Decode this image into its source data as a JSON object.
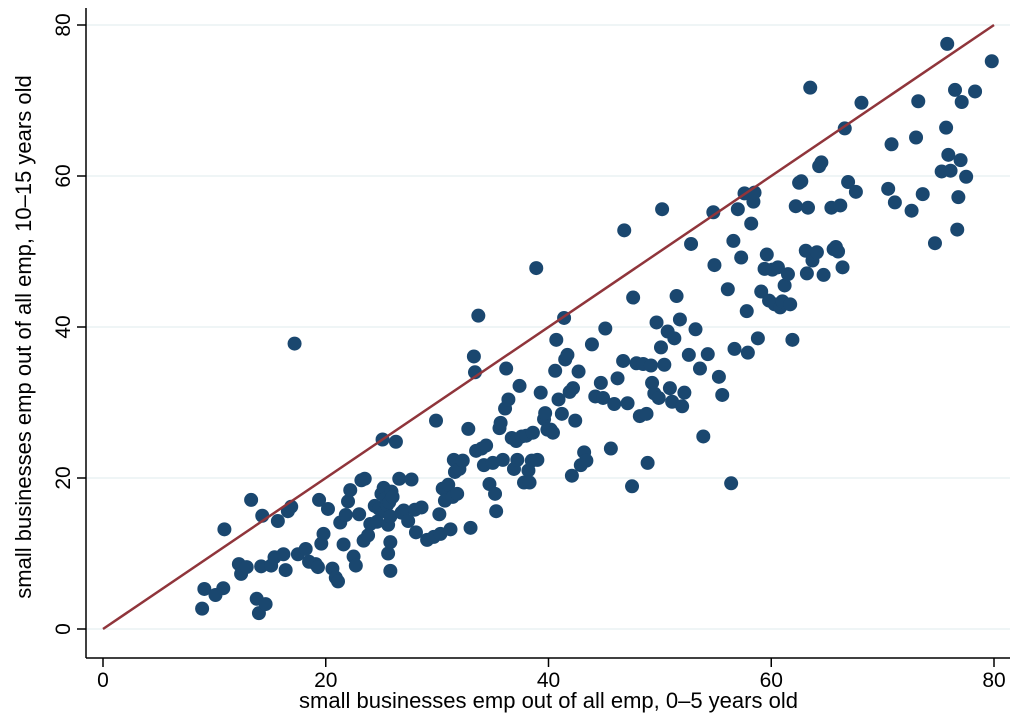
{
  "chart_data": {
    "type": "scatter",
    "title": "",
    "xlabel": "small businesses emp out of all emp, 0–5 years old",
    "ylabel": "small businesses emp out of all emp, 10–15 years old",
    "xlim": [
      0,
      80
    ],
    "ylim": [
      0,
      80
    ],
    "xticks": [
      "0",
      "20",
      "40",
      "60",
      "80"
    ],
    "yticks": [
      "0",
      "20",
      "40",
      "60",
      "80"
    ],
    "grid": "horizontal",
    "legend": "none",
    "colors": {
      "points": "#1a476f",
      "line": "#90353b",
      "grid": "#eaf2f3",
      "axis": "#000000"
    },
    "reference_line": {
      "name": "",
      "x": [
        0,
        80
      ],
      "y": [
        0,
        80
      ]
    },
    "series": [
      {
        "name": "",
        "points": [
          [
            8.9,
            2.7
          ],
          [
            9.1,
            5.3
          ],
          [
            10.1,
            4.5
          ],
          [
            10.8,
            5.4
          ],
          [
            10.9,
            13.2
          ],
          [
            12.2,
            8.6
          ],
          [
            12.4,
            7.3
          ],
          [
            12.9,
            8.2
          ],
          [
            13.3,
            17.1
          ],
          [
            13.8,
            4.0
          ],
          [
            14.0,
            2.1
          ],
          [
            14.2,
            8.3
          ],
          [
            14.3,
            15.0
          ],
          [
            14.6,
            3.3
          ],
          [
            15.1,
            8.4
          ],
          [
            15.4,
            9.5
          ],
          [
            15.7,
            14.3
          ],
          [
            16.2,
            9.9
          ],
          [
            16.4,
            7.8
          ],
          [
            16.6,
            15.6
          ],
          [
            16.9,
            16.2
          ],
          [
            17.2,
            37.8
          ],
          [
            17.5,
            9.9
          ],
          [
            18.2,
            10.6
          ],
          [
            18.5,
            8.9
          ],
          [
            19.1,
            8.6
          ],
          [
            19.3,
            8.2
          ],
          [
            19.4,
            17.1
          ],
          [
            19.6,
            11.3
          ],
          [
            19.8,
            12.6
          ],
          [
            20.2,
            15.9
          ],
          [
            20.6,
            8.0
          ],
          [
            20.9,
            6.8
          ],
          [
            21.1,
            6.3
          ],
          [
            21.3,
            14.1
          ],
          [
            21.6,
            11.2
          ],
          [
            21.8,
            15.1
          ],
          [
            22.0,
            16.9
          ],
          [
            22.2,
            18.4
          ],
          [
            22.5,
            9.6
          ],
          [
            22.7,
            8.4
          ],
          [
            23.0,
            15.2
          ],
          [
            23.2,
            19.7
          ],
          [
            23.4,
            11.7
          ],
          [
            23.5,
            19.9
          ],
          [
            23.8,
            12.4
          ],
          [
            24.0,
            13.9
          ],
          [
            24.4,
            16.3
          ],
          [
            24.6,
            14.2
          ],
          [
            24.8,
            15.9
          ],
          [
            25.0,
            17.9
          ],
          [
            25.2,
            18.7
          ],
          [
            25.3,
            15.6
          ],
          [
            25.4,
            17.3
          ],
          [
            25.5,
            16.4
          ],
          [
            25.6,
            13.8
          ],
          [
            25.7,
            16.8
          ],
          [
            25.8,
            14.9
          ],
          [
            25.9,
            18.2
          ],
          [
            26.0,
            17.5
          ],
          [
            25.1,
            25.1
          ],
          [
            25.6,
            10.0
          ],
          [
            25.8,
            11.5
          ],
          [
            25.8,
            7.7
          ],
          [
            26.3,
            24.8
          ],
          [
            26.6,
            19.9
          ],
          [
            26.8,
            15.4
          ],
          [
            27.0,
            15.7
          ],
          [
            27.4,
            14.3
          ],
          [
            27.7,
            19.8
          ],
          [
            28.0,
            15.8
          ],
          [
            28.1,
            12.8
          ],
          [
            28.6,
            16.1
          ],
          [
            29.1,
            11.8
          ],
          [
            29.7,
            12.2
          ],
          [
            29.9,
            27.6
          ],
          [
            30.2,
            15.2
          ],
          [
            30.3,
            12.6
          ],
          [
            30.5,
            18.6
          ],
          [
            30.7,
            17.0
          ],
          [
            31.0,
            19.1
          ],
          [
            31.2,
            13.2
          ],
          [
            31.4,
            17.5
          ],
          [
            31.5,
            22.4
          ],
          [
            31.6,
            20.8
          ],
          [
            31.8,
            17.9
          ],
          [
            32.0,
            21.2
          ],
          [
            32.3,
            22.3
          ],
          [
            32.8,
            26.5
          ],
          [
            33.0,
            13.4
          ],
          [
            33.3,
            36.1
          ],
          [
            33.4,
            34.0
          ],
          [
            33.5,
            23.6
          ],
          [
            33.7,
            41.5
          ],
          [
            34.0,
            23.9
          ],
          [
            34.2,
            21.7
          ],
          [
            34.4,
            24.3
          ],
          [
            34.7,
            19.2
          ],
          [
            35.0,
            22.0
          ],
          [
            35.2,
            17.9
          ],
          [
            35.3,
            15.6
          ],
          [
            35.6,
            26.6
          ],
          [
            35.7,
            27.3
          ],
          [
            35.9,
            22.4
          ],
          [
            36.1,
            29.2
          ],
          [
            36.2,
            34.5
          ],
          [
            36.4,
            30.4
          ],
          [
            36.7,
            25.3
          ],
          [
            36.9,
            21.2
          ],
          [
            37.1,
            24.9
          ],
          [
            37.2,
            22.4
          ],
          [
            37.4,
            32.2
          ],
          [
            37.6,
            25.5
          ],
          [
            37.8,
            19.4
          ],
          [
            38.0,
            25.6
          ],
          [
            38.2,
            21.0
          ],
          [
            38.3,
            19.4
          ],
          [
            38.5,
            22.3
          ],
          [
            38.6,
            26.0
          ],
          [
            38.9,
            47.8
          ],
          [
            39.0,
            22.4
          ],
          [
            39.3,
            31.3
          ],
          [
            39.6,
            27.8
          ],
          [
            39.7,
            28.6
          ],
          [
            39.9,
            26.4
          ],
          [
            40.2,
            26.4
          ],
          [
            40.4,
            26.0
          ],
          [
            40.6,
            34.2
          ],
          [
            40.7,
            38.3
          ],
          [
            40.9,
            30.4
          ],
          [
            41.2,
            28.5
          ],
          [
            41.4,
            41.2
          ],
          [
            41.5,
            35.7
          ],
          [
            41.7,
            36.3
          ],
          [
            41.9,
            31.4
          ],
          [
            42.1,
            20.3
          ],
          [
            42.2,
            31.9
          ],
          [
            42.4,
            27.6
          ],
          [
            42.7,
            34.1
          ],
          [
            42.9,
            21.7
          ],
          [
            43.2,
            23.4
          ],
          [
            43.4,
            22.3
          ],
          [
            43.9,
            37.7
          ],
          [
            44.2,
            30.8
          ],
          [
            44.7,
            32.6
          ],
          [
            44.9,
            30.6
          ],
          [
            45.1,
            39.8
          ],
          [
            45.6,
            23.9
          ],
          [
            45.9,
            29.8
          ],
          [
            46.2,
            33.2
          ],
          [
            46.7,
            35.5
          ],
          [
            46.8,
            52.8
          ],
          [
            47.1,
            29.9
          ],
          [
            47.5,
            18.9
          ],
          [
            47.6,
            43.9
          ],
          [
            47.9,
            35.2
          ],
          [
            48.2,
            28.2
          ],
          [
            48.5,
            35.1
          ],
          [
            48.8,
            28.5
          ],
          [
            48.9,
            22.0
          ],
          [
            49.2,
            34.9
          ],
          [
            49.3,
            32.6
          ],
          [
            49.5,
            31.2
          ],
          [
            49.7,
            40.6
          ],
          [
            49.9,
            30.6
          ],
          [
            50.1,
            37.3
          ],
          [
            50.2,
            55.6
          ],
          [
            50.4,
            35.0
          ],
          [
            50.7,
            39.4
          ],
          [
            50.9,
            31.9
          ],
          [
            51.1,
            30.1
          ],
          [
            51.3,
            38.5
          ],
          [
            51.5,
            44.1
          ],
          [
            51.8,
            41.0
          ],
          [
            52.0,
            29.5
          ],
          [
            52.2,
            31.3
          ],
          [
            52.6,
            36.3
          ],
          [
            52.8,
            51.0
          ],
          [
            53.2,
            39.7
          ],
          [
            53.6,
            34.5
          ],
          [
            53.9,
            25.5
          ],
          [
            54.3,
            36.4
          ],
          [
            54.8,
            55.2
          ],
          [
            54.9,
            48.2
          ],
          [
            55.3,
            33.4
          ],
          [
            55.6,
            31.0
          ],
          [
            56.1,
            45.0
          ],
          [
            56.4,
            19.3
          ],
          [
            56.6,
            51.4
          ],
          [
            56.7,
            37.1
          ],
          [
            57.0,
            55.6
          ],
          [
            57.3,
            49.2
          ],
          [
            57.6,
            57.7
          ],
          [
            57.8,
            42.1
          ],
          [
            57.9,
            36.6
          ],
          [
            58.2,
            53.7
          ],
          [
            58.4,
            56.6
          ],
          [
            58.5,
            57.8
          ],
          [
            58.8,
            38.5
          ],
          [
            59.1,
            44.7
          ],
          [
            59.4,
            47.7
          ],
          [
            59.6,
            49.6
          ],
          [
            59.8,
            43.5
          ],
          [
            60.1,
            47.6
          ],
          [
            60.3,
            43.0
          ],
          [
            60.6,
            47.9
          ],
          [
            60.8,
            42.6
          ],
          [
            61.0,
            43.4
          ],
          [
            61.2,
            45.5
          ],
          [
            61.5,
            47.0
          ],
          [
            61.7,
            43.0
          ],
          [
            61.9,
            38.3
          ],
          [
            62.2,
            56.0
          ],
          [
            62.5,
            59.1
          ],
          [
            62.7,
            59.3
          ],
          [
            63.1,
            50.1
          ],
          [
            63.2,
            47.1
          ],
          [
            63.3,
            55.8
          ],
          [
            63.5,
            71.7
          ],
          [
            63.7,
            48.8
          ],
          [
            64.1,
            49.9
          ],
          [
            64.3,
            61.3
          ],
          [
            64.5,
            61.8
          ],
          [
            64.7,
            46.9
          ],
          [
            65.4,
            55.8
          ],
          [
            65.6,
            50.3
          ],
          [
            65.8,
            50.6
          ],
          [
            66.0,
            50.0
          ],
          [
            66.2,
            56.1
          ],
          [
            66.4,
            47.9
          ],
          [
            66.6,
            66.3
          ],
          [
            66.9,
            59.2
          ],
          [
            67.6,
            57.9
          ],
          [
            68.1,
            69.7
          ],
          [
            70.5,
            58.3
          ],
          [
            70.8,
            64.2
          ],
          [
            71.1,
            56.5
          ],
          [
            72.6,
            55.4
          ],
          [
            73.0,
            65.1
          ],
          [
            73.2,
            69.9
          ],
          [
            73.6,
            57.6
          ],
          [
            74.7,
            51.1
          ],
          [
            75.3,
            60.6
          ],
          [
            75.9,
            62.8
          ],
          [
            75.8,
            77.5
          ],
          [
            76.1,
            60.7
          ],
          [
            76.5,
            71.4
          ],
          [
            76.7,
            52.9
          ],
          [
            77.0,
            62.1
          ],
          [
            77.1,
            69.8
          ],
          [
            77.5,
            59.9
          ],
          [
            78.3,
            71.2
          ],
          [
            79.8,
            75.2
          ],
          [
            75.7,
            66.4
          ],
          [
            76.8,
            57.2
          ]
        ]
      }
    ]
  }
}
